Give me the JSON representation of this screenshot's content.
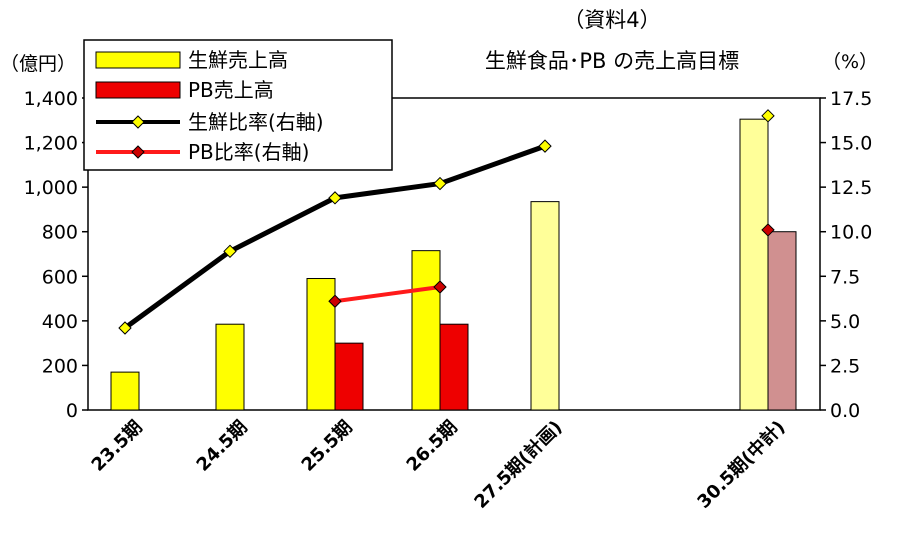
{
  "chart_data": {
    "type": "bar",
    "doc_label": "（資料4）",
    "title": "生鮮食品･PB の売上高目標",
    "ylabel_left": "（億円）",
    "ylabel_right": "（%）",
    "categories": [
      "23.5期",
      "24.5期",
      "25.5期",
      "26.5期",
      "27.5期(計画)",
      "30.5期(中計)"
    ],
    "y_left": {
      "min": 0,
      "max": 1400,
      "step": 200,
      "tick_labels": [
        "0",
        "200",
        "400",
        "600",
        "800",
        "1,000",
        "1,200",
        "1,400"
      ]
    },
    "y_right": {
      "min": 0,
      "max": 17.5,
      "step": 2.5,
      "tick_labels": [
        "0.0",
        "2.5",
        "5.0",
        "7.5",
        "10.0",
        "12.5",
        "15.0",
        "17.5"
      ]
    },
    "grid": false,
    "legend_position": "top-left",
    "series": [
      {
        "name": "生鮮売上高",
        "kind": "bar",
        "axis": "left",
        "values": [
          170,
          385,
          590,
          715,
          935,
          1305
        ],
        "color": "#ffff00",
        "plan_color": "#ffff99"
      },
      {
        "name": "PB売上高",
        "kind": "bar",
        "axis": "left",
        "values": [
          null,
          null,
          300,
          385,
          null,
          800
        ],
        "color": "#ee0000",
        "plan_color": "#d09090"
      },
      {
        "name": "生鮮比率(右軸)",
        "kind": "line",
        "axis": "right",
        "values": [
          4.6,
          8.9,
          11.9,
          12.7,
          14.8,
          16.5
        ],
        "color": "#000000",
        "marker_color": "#ffff00",
        "connect_through": 4
      },
      {
        "name": "PB比率(右軸)",
        "kind": "line",
        "axis": "right",
        "values": [
          null,
          null,
          6.1,
          6.9,
          null,
          10.1
        ],
        "color": "#ff1a1a",
        "marker_color": "#cc0000",
        "connect_through": 3
      }
    ],
    "plan_categories": [
      4,
      5
    ]
  }
}
